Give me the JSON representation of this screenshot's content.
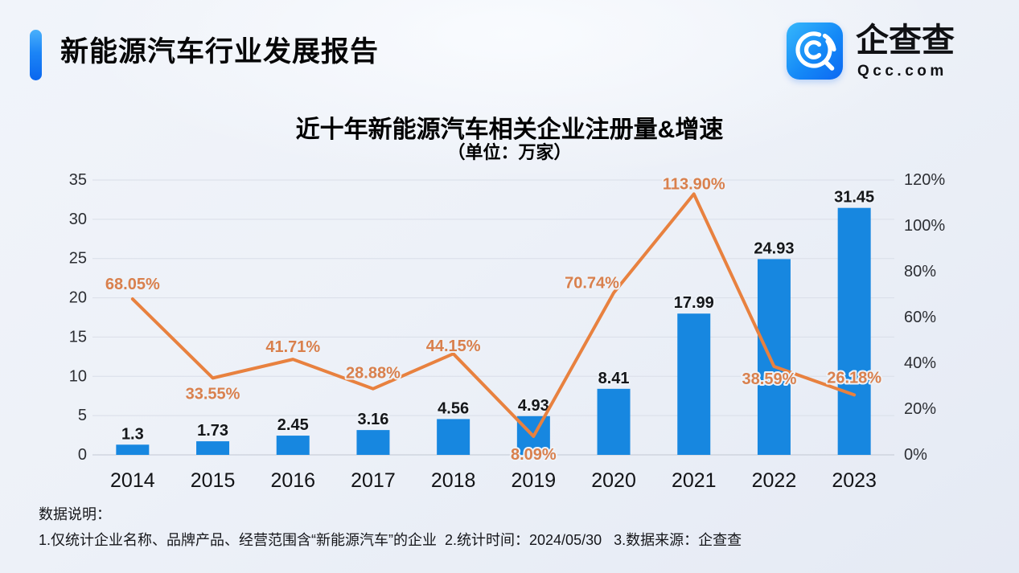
{
  "header": {
    "title": "新能源汽车行业发展报告",
    "logo": {
      "brand": "企查查",
      "domain": "Qcc.com"
    }
  },
  "chart": {
    "title": "近十年新能源汽车相关企业注册量&增速",
    "subtitle": "（单位：万家）"
  },
  "chart_data": {
    "type": "combo",
    "title": "近十年新能源汽车相关企业注册量&增速",
    "subtitle": "（单位：万家）",
    "categories": [
      "2014",
      "2015",
      "2016",
      "2017",
      "2018",
      "2019",
      "2020",
      "2021",
      "2022",
      "2023"
    ],
    "series": [
      {
        "name": "注册量",
        "type": "bar",
        "axis": "left",
        "color": "#1787e0",
        "values": [
          1.3,
          1.73,
          2.45,
          3.16,
          4.56,
          4.93,
          8.41,
          17.99,
          24.93,
          31.45
        ],
        "value_labels": [
          "1.3",
          "1.73",
          "2.45",
          "3.16",
          "4.56",
          "4.93",
          "8.41",
          "17.99",
          "24.93",
          "31.45"
        ]
      },
      {
        "name": "增速",
        "type": "line",
        "axis": "right",
        "color": "#e8813f",
        "label_color": "#d9804d",
        "values": [
          68.05,
          33.55,
          41.71,
          28.88,
          44.15,
          8.09,
          70.74,
          113.9,
          38.59,
          26.18
        ],
        "value_labels": [
          "68.05%",
          "33.55%",
          "41.71%",
          "28.88%",
          "44.15%",
          "8.09%",
          "70.74%",
          "113.90%",
          "38.59%",
          "26.18%"
        ],
        "label_offsets": [
          [
            0,
            -18
          ],
          [
            0,
            20
          ],
          [
            0,
            -15
          ],
          [
            0,
            -19
          ],
          [
            0,
            -9
          ],
          [
            0,
            23
          ],
          [
            -27,
            -12
          ],
          [
            0,
            -12
          ],
          [
            -6,
            16
          ],
          [
            0,
            -21
          ]
        ]
      }
    ],
    "left_axis": {
      "min": 0,
      "max": 35,
      "step": 5,
      "ticks": [
        "0",
        "5",
        "10",
        "15",
        "20",
        "25",
        "30",
        "35"
      ]
    },
    "right_axis": {
      "min": 0,
      "max": 120,
      "step": 20,
      "ticks": [
        "0%",
        "20%",
        "40%",
        "60%",
        "80%",
        "100%",
        "120%"
      ]
    },
    "grid": true,
    "legend": "none"
  },
  "footer": {
    "heading": "数据说明：",
    "notes": "1.仅统计企业名称、品牌产品、经营范围含“新能源汽车”的企业  2.统计时间：2024/05/30   3.数据来源：企查查"
  }
}
